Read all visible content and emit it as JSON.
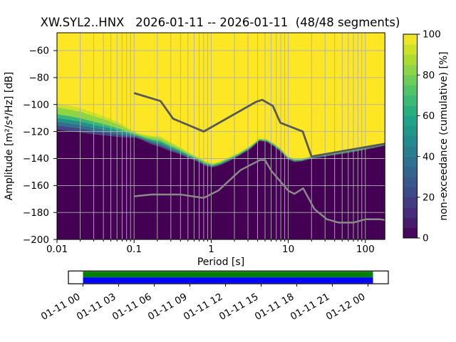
{
  "title": "XW.SYL2..HNX   2026-01-11 -- 2026-01-11  (48/48 segments)",
  "chart_data": {
    "type": "heatmap",
    "xlabel": "Period [s]",
    "ylabel": "Amplitude [m²/s⁴/Hz] [dB]",
    "colorbar_label": "non-exceedance (cumulative) [%]",
    "x_scale": "log",
    "xlim": [
      0.01,
      179
    ],
    "ylim_db": [
      -200,
      -47
    ],
    "xticks": [
      {
        "v": 0.01,
        "label": "0.01"
      },
      {
        "v": 0.1,
        "label": "0.1"
      },
      {
        "v": 1,
        "label": "1"
      },
      {
        "v": 10,
        "label": "10"
      },
      {
        "v": 100,
        "label": "100"
      }
    ],
    "yticks": [
      {
        "v": -60,
        "label": "−60"
      },
      {
        "v": -80,
        "label": "−80"
      },
      {
        "v": -100,
        "label": "−100"
      },
      {
        "v": -120,
        "label": "−120"
      },
      {
        "v": -140,
        "label": "−140"
      },
      {
        "v": -160,
        "label": "−160"
      },
      {
        "v": -180,
        "label": "−180"
      },
      {
        "v": -200,
        "label": "−200"
      }
    ],
    "colorbar": {
      "steps": 20,
      "range": [
        0,
        100
      ],
      "ticks": [
        {
          "v": 0,
          "label": "0"
        },
        {
          "v": 20,
          "label": "20"
        },
        {
          "v": 40,
          "label": "40"
        },
        {
          "v": 60,
          "label": "60"
        },
        {
          "v": 80,
          "label": "80"
        },
        {
          "v": 100,
          "label": "100"
        }
      ]
    },
    "cumulative_distribution": {
      "periods_s": [
        0.01,
        0.014,
        0.02,
        0.03,
        0.045,
        0.065,
        0.085,
        0.105,
        0.13,
        0.17,
        0.22,
        0.28,
        0.38,
        0.5,
        0.65,
        0.85,
        1.05,
        1.3,
        1.7,
        2.3,
        3.2,
        4.2,
        5.2,
        6.5,
        8,
        9.8,
        12,
        15,
        20,
        30,
        50,
        80,
        120,
        179
      ],
      "transition_top_db": [
        -99,
        -100.5,
        -102.5,
        -106,
        -109.5,
        -113.5,
        -117.5,
        -120.5,
        -122,
        -123,
        -123.5,
        -127,
        -131,
        -135,
        -138.5,
        -142,
        -143.5,
        -142,
        -139,
        -135.5,
        -130.5,
        -125,
        -125.5,
        -128.5,
        -132.5,
        -138,
        -140,
        -140,
        -138,
        -136.5,
        -134.5,
        -132.5,
        -130.5,
        -128.5
      ],
      "transition_bottom_db": [
        -118.5,
        -119.5,
        -120.5,
        -122,
        -123,
        -124,
        -124.5,
        -124.5,
        -126.5,
        -129.5,
        -131.5,
        -134,
        -136.5,
        -139.5,
        -142,
        -145.5,
        -146.5,
        -145,
        -142,
        -138,
        -133,
        -127,
        -127.5,
        -131,
        -135,
        -140.5,
        -142.5,
        -142,
        -140,
        -138.5,
        -136.5,
        -134.5,
        -132.5,
        -130.5
      ]
    },
    "noise_models": {
      "nhnm": {
        "periods_s": [
          0.1,
          0.22,
          0.32,
          0.8,
          3.8,
          4.6,
          6.3,
          7.9,
          15.4,
          20,
          179
        ],
        "db": [
          -91.5,
          -97.4,
          -110.5,
          -120,
          -98.1,
          -96.5,
          -101,
          -113.5,
          -120,
          -138.5,
          -129
        ]
      },
      "nlnm": {
        "periods_s": [
          0.1,
          0.17,
          0.4,
          0.8,
          1.24,
          2.4,
          4.3,
          5,
          6,
          10,
          12,
          15.6,
          21.9,
          31.6,
          45,
          70,
          101,
          154,
          179
        ],
        "db": [
          -168,
          -166.7,
          -166.7,
          -169.2,
          -163.7,
          -148.6,
          -141.1,
          -141.1,
          -149,
          -163.8,
          -166.2,
          -162.1,
          -177.5,
          -185,
          -187.5,
          -187.5,
          -185,
          -185,
          -185.5
        ]
      }
    },
    "timeline": {
      "tick_labels": [
        "01-11 00",
        "01-11 03",
        "01-11 06",
        "01-11 09",
        "01-11 12",
        "01-11 15",
        "01-11 18",
        "01-11 21",
        "01-12 00"
      ]
    },
    "colors": {
      "background": "#ffffff",
      "cmap_max": "#fde725",
      "cmap_min": "#440154",
      "grid": "#b0b0b0",
      "nhnm": "#595959",
      "nlnm": "#8a8a8a",
      "coverage_top": "#008000",
      "coverage_bottom": "#0000ff"
    }
  }
}
